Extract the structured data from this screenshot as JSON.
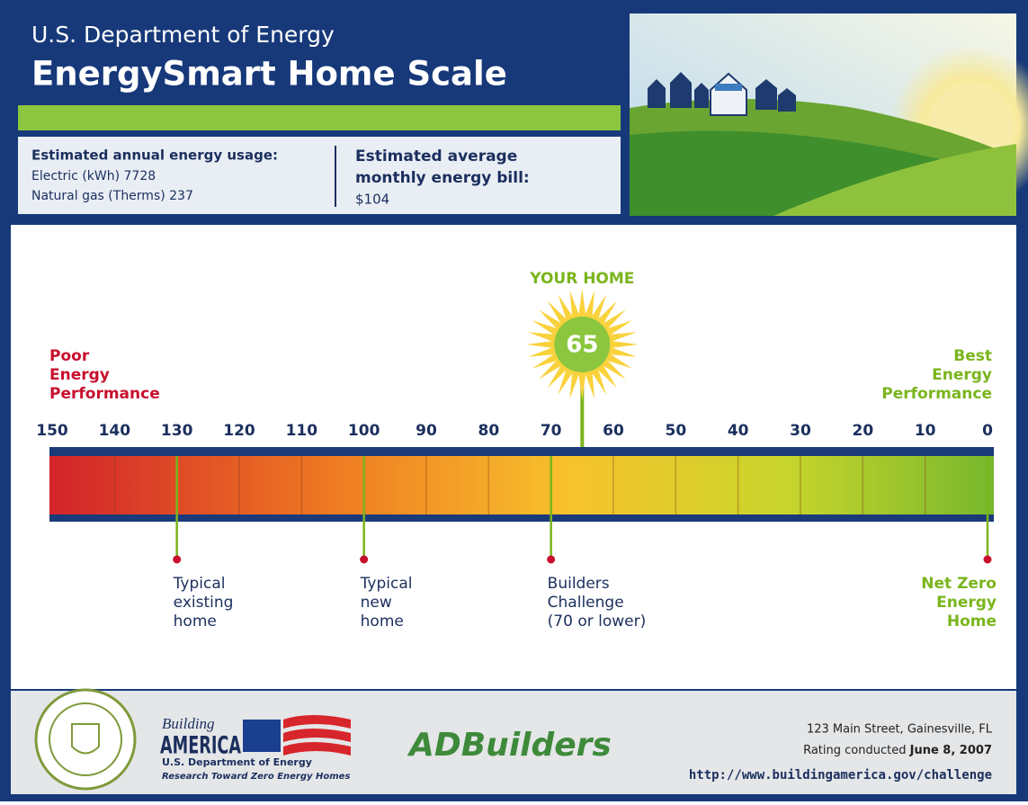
{
  "header": {
    "agency": "U.S. Department of Energy",
    "title": "EnergySmart Home Scale"
  },
  "usage": {
    "heading": "Estimated annual energy usage:",
    "lines": [
      "Electric (kWh) 7728",
      "Natural gas (Therms) 237"
    ]
  },
  "bill": {
    "heading_lines": [
      "Estimated average",
      "monthly energy bill:"
    ],
    "amount": "$104"
  },
  "scale": {
    "ticks": [
      150,
      140,
      130,
      120,
      110,
      100,
      90,
      80,
      70,
      60,
      50,
      40,
      30,
      20,
      10,
      0
    ],
    "poor_label": [
      "Poor",
      "Energy",
      "Performance"
    ],
    "best_label": [
      "Best",
      "Energy",
      "Performance"
    ],
    "your_home": {
      "label": "YOUR HOME",
      "value": 65
    },
    "markers": [
      {
        "value": 130,
        "lines": [
          "Typical",
          "existing",
          "home"
        ]
      },
      {
        "value": 100,
        "lines": [
          "Typical",
          "new",
          "home"
        ]
      },
      {
        "value": 70,
        "lines": [
          "Builders",
          "Challenge",
          "(70 or lower)"
        ]
      },
      {
        "value": 0,
        "lines": [
          "Net Zero",
          "Energy",
          "Home"
        ]
      }
    ]
  },
  "footer": {
    "building_america": {
      "wordmark": "AMERICA",
      "script": "Building",
      "agency": "U.S. Department of Energy",
      "tagline": "Research Toward Zero Energy Homes"
    },
    "builder": "ADBuilders",
    "address": "123 Main Street, Gainesville, FL",
    "rating_prefix": "Rating conducted",
    "rating_date": "June 8, 2007",
    "url": "http://www.buildingamerica.gov/challenge"
  }
}
